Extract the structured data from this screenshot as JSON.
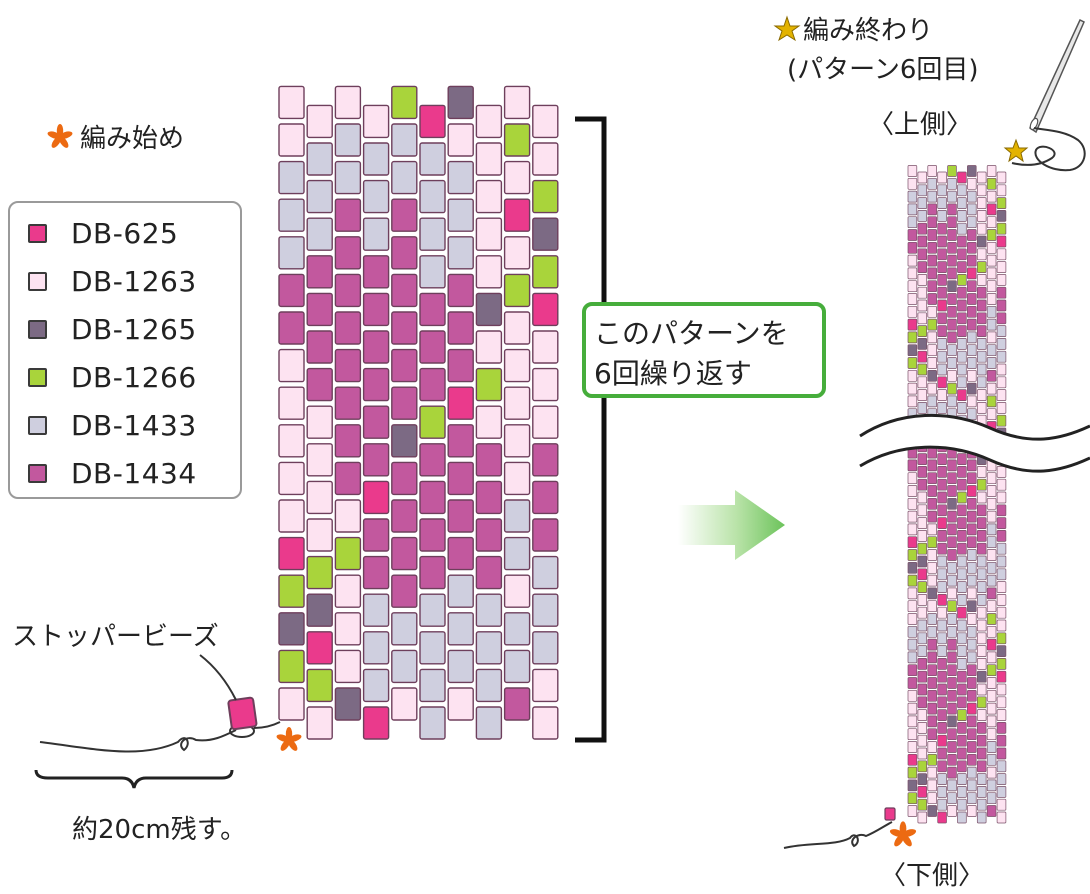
{
  "labels": {
    "start": "編み始め",
    "stopper": "ストッパービーズ",
    "leave": "約20cm残す。",
    "end_line1": "編み終わり",
    "end_line2": "(パターン6回目)",
    "top_side": "〈上側〉",
    "bottom_side": "〈下側〉",
    "repeat_line1": "このパターンを",
    "repeat_line2": "6回繰り返す"
  },
  "legend": [
    {
      "code": "DB-625",
      "color": "#ea3a8c"
    },
    {
      "code": "DB-1263",
      "color": "#fde3f1"
    },
    {
      "code": "DB-1265",
      "color": "#7c6a84"
    },
    {
      "code": "DB-1266",
      "color": "#a9d43b"
    },
    {
      "code": "DB-1433",
      "color": "#cfcfdf"
    },
    {
      "code": "DB-1434",
      "color": "#c2589e"
    }
  ],
  "colors": {
    "bead_outline": "#6e3f5c",
    "callout_border": "#46ad3b",
    "star": "#e3b300",
    "start_mark": "#ec6a12",
    "arrow": "#8fd27e"
  },
  "icons": [
    "asterisk-start-icon",
    "star-end-icon",
    "needle-icon",
    "arrow-right-icon",
    "bracket-icon"
  ],
  "pattern": {
    "legend_index": "0=DB-625,1=DB-1263,2=DB-1265,3=DB-1266,4=DB-1433,5=DB-1434",
    "rows_bottom_to_top": [
      [
        1,
        1,
        2,
        0,
        1,
        4,
        1,
        4,
        5,
        1
      ],
      [
        3,
        3,
        1,
        4,
        4,
        4,
        4,
        4,
        4,
        1
      ],
      [
        2,
        0,
        1,
        4,
        4,
        4,
        4,
        4,
        4,
        4
      ],
      [
        3,
        2,
        1,
        4,
        5,
        4,
        4,
        4,
        1,
        4
      ],
      [
        0,
        3,
        3,
        5,
        5,
        5,
        5,
        5,
        4,
        4
      ],
      [
        1,
        1,
        1,
        5,
        5,
        5,
        5,
        5,
        4,
        5
      ],
      [
        1,
        1,
        5,
        0,
        5,
        5,
        5,
        5,
        1,
        5
      ],
      [
        1,
        1,
        5,
        5,
        2,
        5,
        5,
        5,
        1,
        5
      ],
      [
        1,
        1,
        5,
        5,
        5,
        3,
        0,
        1,
        1,
        1
      ],
      [
        1,
        5,
        5,
        5,
        5,
        5,
        5,
        3,
        1,
        1
      ],
      [
        5,
        5,
        5,
        5,
        5,
        5,
        5,
        1,
        1,
        1
      ],
      [
        5,
        5,
        5,
        5,
        5,
        5,
        5,
        2,
        3,
        0
      ],
      [
        4,
        5,
        5,
        5,
        5,
        4,
        4,
        1,
        1,
        3
      ],
      [
        4,
        4,
        5,
        4,
        5,
        4,
        4,
        1,
        0,
        2
      ],
      [
        4,
        4,
        4,
        4,
        4,
        4,
        4,
        1,
        1,
        3
      ],
      [
        1,
        4,
        4,
        4,
        4,
        4,
        1,
        1,
        3,
        1
      ],
      [
        1,
        1,
        1,
        1,
        3,
        0,
        2,
        1,
        1,
        1
      ]
    ]
  }
}
